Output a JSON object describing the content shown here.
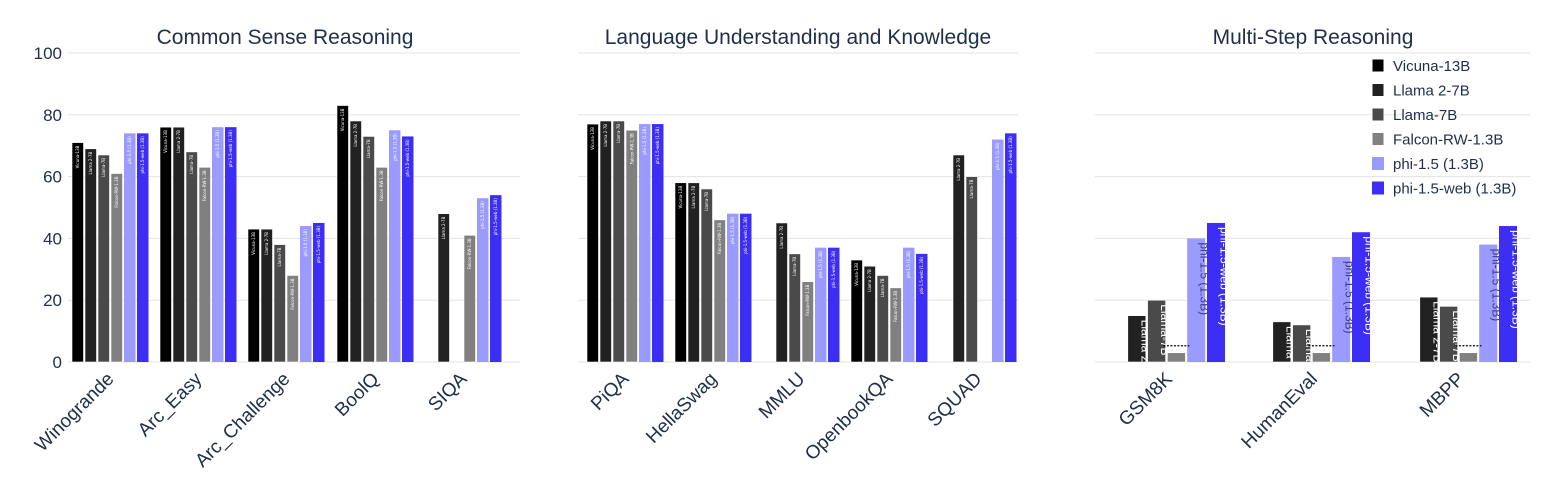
{
  "chart_data": [
    {
      "type": "bar",
      "title": "Common Sense Reasoning",
      "categories": [
        "Winogrande",
        "Arc_Easy",
        "Arc_Challenge",
        "BoolQ",
        "SIQA"
      ],
      "ylim": [
        0,
        100
      ],
      "yticks": [
        0,
        20,
        40,
        60,
        80,
        100
      ],
      "grid": true,
      "series": [
        {
          "name": "Vicuna-13B",
          "values": [
            71,
            76,
            43,
            83,
            null
          ]
        },
        {
          "name": "Llama 2-7B",
          "values": [
            69,
            76,
            43,
            78,
            48
          ]
        },
        {
          "name": "Llama-7B",
          "values": [
            67,
            68,
            38,
            73,
            null
          ]
        },
        {
          "name": "Falcon-RW-1.3B",
          "values": [
            61,
            63,
            28,
            63,
            41
          ]
        },
        {
          "name": "phi-1.5 (1.3B)",
          "values": [
            74,
            76,
            44,
            75,
            53
          ]
        },
        {
          "name": "phi-1.5-web (1.3B)",
          "values": [
            74,
            76,
            45,
            73,
            54
          ]
        }
      ]
    },
    {
      "type": "bar",
      "title": "Language Understanding and Knowledge",
      "categories": [
        "PiQA",
        "HellaSwag",
        "MMLU",
        "OpenbookQA",
        "SQUAD"
      ],
      "ylim": [
        0,
        100
      ],
      "grid": true,
      "series": [
        {
          "name": "Vicuna-13B",
          "values": [
            77,
            58,
            null,
            33,
            null
          ]
        },
        {
          "name": "Llama 2-7B",
          "values": [
            78,
            58,
            45,
            31,
            67
          ]
        },
        {
          "name": "Llama-7B",
          "values": [
            78,
            56,
            35,
            28,
            60
          ]
        },
        {
          "name": "Falcon-RW-1.3B",
          "values": [
            75,
            46,
            26,
            24,
            null
          ]
        },
        {
          "name": "phi-1.5 (1.3B)",
          "values": [
            77,
            48,
            37,
            37,
            72
          ]
        },
        {
          "name": "phi-1.5-web (1.3B)",
          "values": [
            77,
            48,
            37,
            35,
            74
          ]
        }
      ]
    },
    {
      "type": "bar",
      "title": "Multi-Step Reasoning",
      "categories": [
        "GSM8K",
        "HumanEval",
        "MBPP"
      ],
      "ylim": [
        0,
        100
      ],
      "grid": true,
      "legend_position": "top-right",
      "series": [
        {
          "name": "Vicuna-13B",
          "values": [
            null,
            null,
            null
          ]
        },
        {
          "name": "Llama 2-7B",
          "values": [
            15,
            13,
            21
          ]
        },
        {
          "name": "Llama-7B",
          "values": [
            20,
            12,
            18
          ]
        },
        {
          "name": "Falcon-RW-1.3B",
          "values": [
            3,
            3,
            3
          ]
        },
        {
          "name": "phi-1.5 (1.3B)",
          "values": [
            40,
            34,
            38
          ]
        },
        {
          "name": "phi-1.5-web (1.3B)",
          "values": [
            45,
            42,
            44
          ]
        }
      ]
    }
  ],
  "legend": [
    {
      "name": "Vicuna-13B",
      "color": "#000000"
    },
    {
      "name": "Llama 2-7B",
      "color": "#212121"
    },
    {
      "name": "Llama-7B",
      "color": "#4a4a4a"
    },
    {
      "name": "Falcon-RW-1.3B",
      "color": "#808080"
    },
    {
      "name": "phi-1.5 (1.3B)",
      "color": "#9b9bff"
    },
    {
      "name": "phi-1.5-web (1.3B)",
      "color": "#3c2ef5"
    }
  ],
  "colors": {
    "Vicuna-13B": "#000000",
    "Llama 2-7B": "#212121",
    "Llama-7B": "#4a4a4a",
    "Falcon-RW-1.3B": "#808080",
    "phi-1.5 (1.3B)": "#9b9bff",
    "phi-1.5-web (1.3B)": "#3c2ef5",
    "text": "#1f2f4a"
  }
}
